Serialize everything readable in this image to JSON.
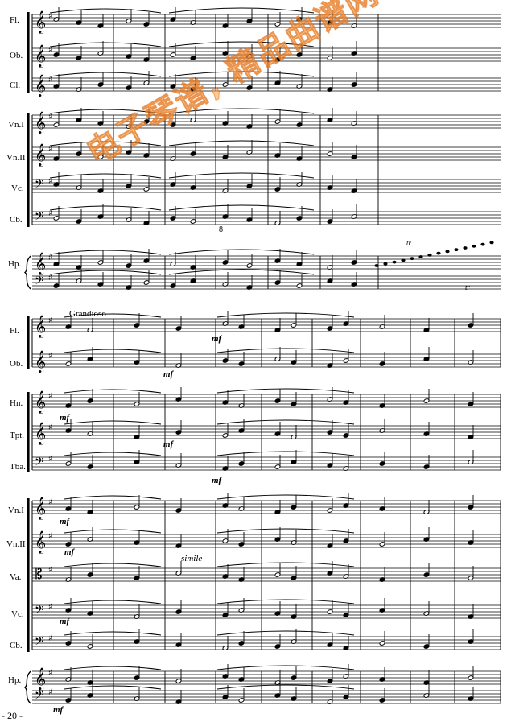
{
  "page": {
    "number": "- 20 -"
  },
  "system1": {
    "instruments": [
      "Fl.",
      "Ob.",
      "Cl.",
      "Vn.I",
      "Vn.II",
      "Vc.",
      "Cb.",
      "Hp."
    ],
    "annotations": {
      "octave": "8",
      "tremolo1": "tr",
      "tremolo2": "tr"
    }
  },
  "system2": {
    "tempo": "Grandioso",
    "instruments": [
      "Fl.",
      "Ob.",
      "Hn.",
      "Tpt.",
      "Tba.",
      "Vn.I",
      "Vn.II",
      "Va.",
      "Vc.",
      "Cb.",
      "Hp."
    ],
    "annotations": {
      "simile": "simile"
    },
    "dynamics": [
      "mf",
      "mf",
      "mf",
      "mf",
      "mf",
      "mf",
      "mf",
      "mf",
      "mf"
    ]
  },
  "watermark": {
    "text": "电子琴谱, 精品曲谱网"
  }
}
